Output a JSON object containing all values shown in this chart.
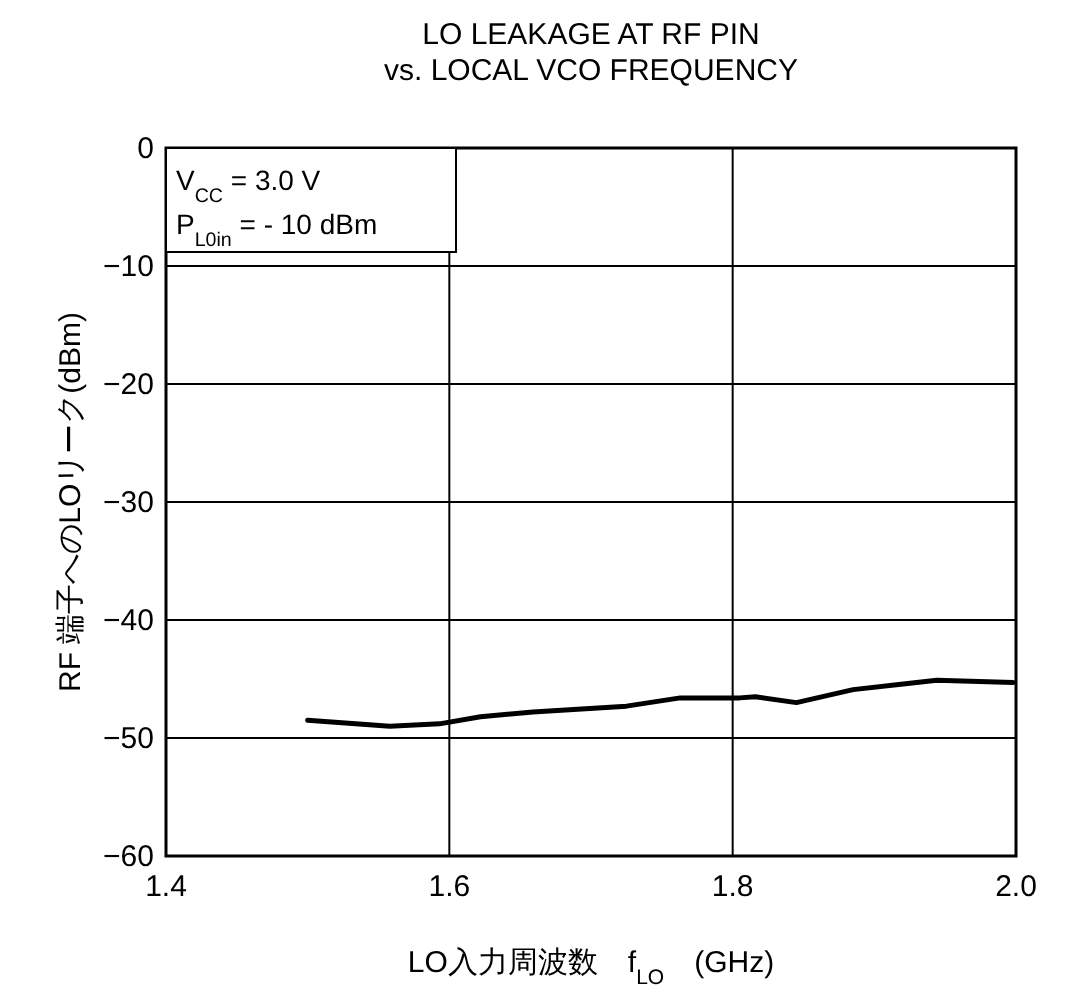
{
  "chart_data": {
    "type": "line",
    "title": "LO LEAKAGE AT RF PIN",
    "subtitle": "vs. LOCAL VCO FREQUENCY",
    "xlabel": "LO入力周波数　f$_{LO}$　(GHz)",
    "ylabel": "RF 端子へのLOリーク(dBm)",
    "annotations": [
      "V$_{CC}$ = 3.0 V",
      "P$_{L0in}$ =  - 10 dBm"
    ],
    "x": [
      1.5,
      1.558,
      1.593,
      1.622,
      1.659,
      1.725,
      1.763,
      1.805,
      1.816,
      1.845,
      1.885,
      1.922,
      1.944,
      1.998
    ],
    "series": [
      {
        "color": "#000000",
        "values": [
          -48.5,
          -49.0,
          -48.8,
          -48.2,
          -47.8,
          -47.3,
          -46.6,
          -46.6,
          -46.5,
          -47.0,
          -45.9,
          -45.4,
          -45.1,
          -45.3
        ]
      }
    ],
    "xlim": [
      1.4,
      2.0
    ],
    "xticks": [
      1.4,
      1.6,
      1.8,
      {
        "value": 2.0,
        "label": "2.0"
      }
    ],
    "ylim": [
      -60,
      0
    ],
    "yticks": [
      {
        "value": 0,
        "label": "0"
      },
      {
        "value": -10,
        "label": "−10"
      },
      {
        "value": -20,
        "label": "−20"
      },
      {
        "value": -30,
        "label": "−30"
      },
      {
        "value": -40,
        "label": "−40"
      },
      {
        "value": -50,
        "label": "−50"
      },
      {
        "value": -60,
        "label": "−60"
      }
    ],
    "grid": true,
    "marker": "none",
    "line_style": "solid"
  }
}
